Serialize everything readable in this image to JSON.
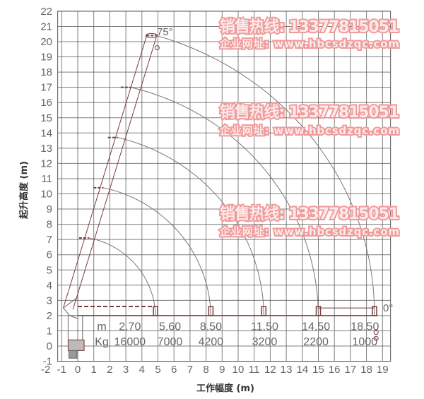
{
  "chart_data": {
    "type": "diagram",
    "xlabel": "工作幅度 (m)",
    "ylabel": "起升高度 (m)",
    "xlim": [
      -2,
      19
    ],
    "ylim": [
      -1,
      22
    ],
    "x_ticks": [
      "-2",
      "-1",
      "0",
      "1",
      "2",
      "3",
      "4",
      "5",
      "6",
      "7",
      "8",
      "9",
      "10",
      "11",
      "12",
      "13",
      "14",
      "15",
      "16",
      "17",
      "18",
      "19"
    ],
    "y_ticks": [
      "-1",
      "0",
      "1",
      "2",
      "3",
      "4",
      "5",
      "6",
      "7",
      "8",
      "9",
      "10",
      "11",
      "12",
      "13",
      "14",
      "15",
      "16",
      "17",
      "18",
      "19",
      "20",
      "21",
      "22"
    ],
    "grid": true,
    "angle_labels": {
      "max": "75°",
      "min": "0°"
    },
    "boom_tip_heights": [
      7.1,
      10.4,
      13.7,
      17.0,
      20.4
    ],
    "boom_tip_x": [
      0.7,
      1.6,
      2.5,
      3.3,
      4.9
    ],
    "arc_end_radius": [
      4.85,
      8.3,
      11.6,
      15.0,
      18.5
    ],
    "table": {
      "row_labels": [
        "m",
        "Kg"
      ],
      "radius_m": [
        "2.70",
        "5.60",
        "8.50",
        "11.50",
        "14.50",
        "18.50"
      ],
      "load_kg": [
        "16000",
        "7000",
        "4200",
        "3200",
        "2200",
        "1000"
      ]
    },
    "colors": {
      "grid": "#555555",
      "boom": "#7a3b3b",
      "arc": "#777777",
      "watermark": "#f19a9a"
    }
  },
  "watermark": {
    "hotline": "销售热线: 13377815051",
    "website": "企业网址: www.hbcsdzqc.com"
  }
}
